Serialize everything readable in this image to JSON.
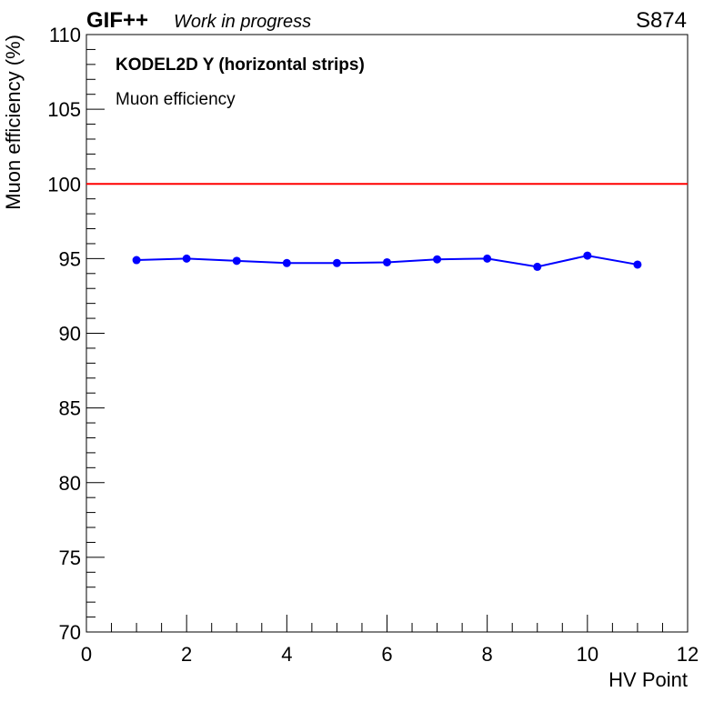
{
  "header": {
    "experiment": "GIF++",
    "status": "Work in progress",
    "run_id": "S874"
  },
  "labels": {
    "detector": "KODEL2D Y (horizontal strips)",
    "quantity": "Muon efficiency"
  },
  "colors": {
    "series": "#0000ff",
    "reference_line": "#ff0000",
    "axis": "#000000",
    "background": "#ffffff"
  },
  "chart_data": {
    "type": "line",
    "title": "",
    "xlabel": "HV Point",
    "ylabel": "Muon efficiency (%)",
    "xlim": [
      0,
      12
    ],
    "ylim": [
      70,
      110
    ],
    "x_ticks": [
      0,
      2,
      4,
      6,
      8,
      10,
      12
    ],
    "y_ticks": [
      70,
      75,
      80,
      85,
      90,
      95,
      100,
      105,
      110
    ],
    "grid": false,
    "reference_line": {
      "y": 100
    },
    "series": [
      {
        "x": [
          1,
          2,
          3,
          4,
          5,
          6,
          7,
          8,
          9,
          10,
          11
        ],
        "y": [
          94.9,
          95.0,
          94.85,
          94.7,
          94.7,
          94.75,
          94.95,
          95.0,
          94.45,
          95.2,
          94.6
        ]
      }
    ]
  }
}
